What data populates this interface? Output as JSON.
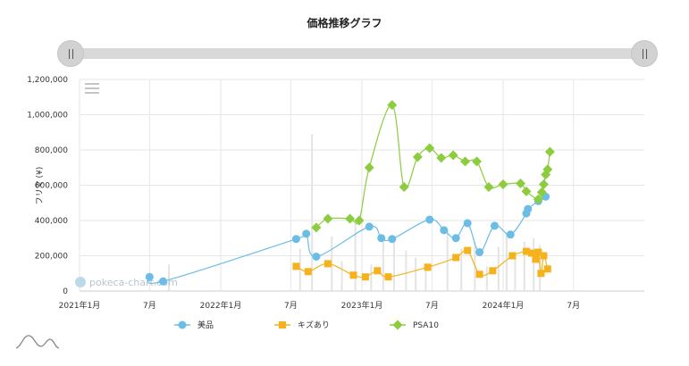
{
  "chart_data": {
    "type": "line",
    "title": "価格推移グラフ",
    "xlabel": "",
    "ylabel": "フリマ (¥)",
    "ylim": [
      0,
      1200000
    ],
    "yticks": [
      0,
      200000,
      400000,
      600000,
      800000,
      1000000,
      1200000
    ],
    "ytick_labels": [
      "0",
      "200,000",
      "400,000",
      "600,000",
      "800,000",
      "1,000,000",
      "1,200,000"
    ],
    "x_range": [
      "2021-01-01",
      "2024-12-31"
    ],
    "xticks": [
      {
        "date": "2021-01-01",
        "label": "2021年1月"
      },
      {
        "date": "2021-07-01",
        "label": "7月"
      },
      {
        "date": "2022-01-01",
        "label": "2022年1月"
      },
      {
        "date": "2022-07-01",
        "label": "7月"
      },
      {
        "date": "2023-01-01",
        "label": "2023年1月"
      },
      {
        "date": "2023-07-01",
        "label": "7月"
      },
      {
        "date": "2024-01-01",
        "label": "2024年1月"
      },
      {
        "date": "2024-07-01",
        "label": "7月"
      }
    ],
    "legend_position": "bottom",
    "watermark": "pokeca-chart.com",
    "series": [
      {
        "name": "美品",
        "color": "#6bbde6",
        "marker": "circle",
        "points": [
          {
            "x": "2021-07-01",
            "y": 80000
          },
          {
            "x": "2021-08-05",
            "y": 55000
          },
          {
            "x": "2022-07-15",
            "y": 295000
          },
          {
            "x": "2022-08-10",
            "y": 325000
          },
          {
            "x": "2022-09-05",
            "y": 195000
          },
          {
            "x": "2023-01-20",
            "y": 365000
          },
          {
            "x": "2023-02-20",
            "y": 300000
          },
          {
            "x": "2023-03-20",
            "y": 295000
          },
          {
            "x": "2023-06-25",
            "y": 405000
          },
          {
            "x": "2023-08-01",
            "y": 345000
          },
          {
            "x": "2023-09-01",
            "y": 300000
          },
          {
            "x": "2023-10-01",
            "y": 385000
          },
          {
            "x": "2023-11-01",
            "y": 220000
          },
          {
            "x": "2023-12-10",
            "y": 370000
          },
          {
            "x": "2024-01-20",
            "y": 320000
          },
          {
            "x": "2024-03-01",
            "y": 440000
          },
          {
            "x": "2024-03-05",
            "y": 465000
          },
          {
            "x": "2024-04-01",
            "y": 510000
          },
          {
            "x": "2024-04-20",
            "y": 535000
          }
        ]
      },
      {
        "name": "キズあり",
        "color": "#f5b21c",
        "marker": "square",
        "points": [
          {
            "x": "2022-07-15",
            "y": 140000
          },
          {
            "x": "2022-08-15",
            "y": 110000
          },
          {
            "x": "2022-10-05",
            "y": 155000
          },
          {
            "x": "2022-12-10",
            "y": 90000
          },
          {
            "x": "2023-01-10",
            "y": 80000
          },
          {
            "x": "2023-02-10",
            "y": 115000
          },
          {
            "x": "2023-03-10",
            "y": 80000
          },
          {
            "x": "2023-06-20",
            "y": 135000
          },
          {
            "x": "2023-09-01",
            "y": 190000
          },
          {
            "x": "2023-10-01",
            "y": 230000
          },
          {
            "x": "2023-11-01",
            "y": 95000
          },
          {
            "x": "2023-12-05",
            "y": 115000
          },
          {
            "x": "2024-01-25",
            "y": 200000
          },
          {
            "x": "2024-03-01",
            "y": 225000
          },
          {
            "x": "2024-03-15",
            "y": 215000
          },
          {
            "x": "2024-03-25",
            "y": 180000
          },
          {
            "x": "2024-04-01",
            "y": 220000
          },
          {
            "x": "2024-04-08",
            "y": 100000
          },
          {
            "x": "2024-04-15",
            "y": 200000
          },
          {
            "x": "2024-04-25",
            "y": 125000
          }
        ]
      },
      {
        "name": "PSA10",
        "color": "#8ccc3e",
        "marker": "diamond",
        "points": [
          {
            "x": "2022-09-05",
            "y": 360000
          },
          {
            "x": "2022-10-05",
            "y": 410000
          },
          {
            "x": "2022-12-01",
            "y": 410000
          },
          {
            "x": "2022-12-25",
            "y": 400000
          },
          {
            "x": "2023-01-20",
            "y": 700000
          },
          {
            "x": "2023-03-20",
            "y": 1055000
          },
          {
            "x": "2023-04-20",
            "y": 590000
          },
          {
            "x": "2023-05-25",
            "y": 760000
          },
          {
            "x": "2023-06-25",
            "y": 810000
          },
          {
            "x": "2023-07-25",
            "y": 755000
          },
          {
            "x": "2023-08-25",
            "y": 770000
          },
          {
            "x": "2023-09-25",
            "y": 735000
          },
          {
            "x": "2023-10-25",
            "y": 735000
          },
          {
            "x": "2023-11-25",
            "y": 590000
          },
          {
            "x": "2024-01-01",
            "y": 605000
          },
          {
            "x": "2024-02-15",
            "y": 610000
          },
          {
            "x": "2024-03-01",
            "y": 565000
          },
          {
            "x": "2024-04-01",
            "y": 520000
          },
          {
            "x": "2024-04-10",
            "y": 560000
          },
          {
            "x": "2024-04-15",
            "y": 605000
          },
          {
            "x": "2024-04-20",
            "y": 660000
          },
          {
            "x": "2024-04-25",
            "y": 690000
          },
          {
            "x": "2024-05-01",
            "y": 790000
          }
        ]
      }
    ],
    "volume_bars": [
      {
        "x": "2021-08-20",
        "y": 150000
      },
      {
        "x": "2022-07-25",
        "y": 240000
      },
      {
        "x": "2022-08-25",
        "y": 890000
      },
      {
        "x": "2022-10-15",
        "y": 310000
      },
      {
        "x": "2022-11-10",
        "y": 170000
      },
      {
        "x": "2022-12-15",
        "y": 380000
      },
      {
        "x": "2023-01-25",
        "y": 150000
      },
      {
        "x": "2023-02-25",
        "y": 320000
      },
      {
        "x": "2023-03-25",
        "y": 290000
      },
      {
        "x": "2023-04-25",
        "y": 230000
      },
      {
        "x": "2023-05-20",
        "y": 190000
      },
      {
        "x": "2023-06-15",
        "y": 120000
      },
      {
        "x": "2023-08-10",
        "y": 350000
      },
      {
        "x": "2023-09-15",
        "y": 240000
      },
      {
        "x": "2023-10-20",
        "y": 280000
      },
      {
        "x": "2023-11-20",
        "y": 140000
      },
      {
        "x": "2023-12-20",
        "y": 250000
      },
      {
        "x": "2024-01-10",
        "y": 330000
      },
      {
        "x": "2024-02-01",
        "y": 210000
      },
      {
        "x": "2024-02-25",
        "y": 280000
      },
      {
        "x": "2024-03-20",
        "y": 300000
      },
      {
        "x": "2024-04-05",
        "y": 260000
      }
    ]
  }
}
